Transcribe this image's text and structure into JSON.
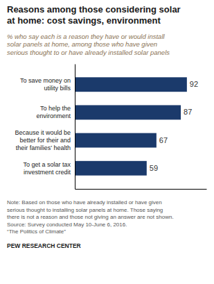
{
  "chart_data": {
    "type": "bar",
    "orientation": "horizontal",
    "title": "Reasons among those considering solar\nat home: cost savings, environment",
    "subtitle": "% who say each is a reason they have or would install\nsolar panels at home, among those who have given\nserious thought to or have already installed solar panels",
    "categories": [
      "To save money on\nutility bills",
      "To help the\nenvironment",
      "Because it would be\nbetter for their and\ntheir families’ health",
      "To get a solar tax\ninvestment credit"
    ],
    "values": [
      92,
      87,
      67,
      59
    ],
    "color": "#1B3A6B",
    "xlim": [
      0,
      108
    ],
    "data_labels": true,
    "tick_labels": "y",
    "grid": false,
    "annotations": [
      "Note: Based on those who have already installed or have given\nserious thought to installing solar panels at home. Those saying\nthere is not a reason and those not giving an answer are not shown.\nSource: Survey conducted May 10-June 6, 2016.\n“The Politics of Climate”",
      "PEW RESEARCH CENTER"
    ]
  }
}
